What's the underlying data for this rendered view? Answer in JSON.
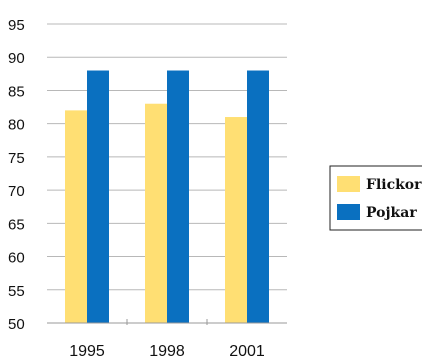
{
  "chart_data": {
    "type": "bar",
    "title": "",
    "xlabel": "",
    "ylabel": "",
    "categories": [
      "1995",
      "1998",
      "2001"
    ],
    "series": [
      {
        "name": "Flickor",
        "values": [
          82,
          83,
          81
        ],
        "color": "#ffdf73"
      },
      {
        "name": "Pojkar",
        "values": [
          88,
          88,
          88
        ],
        "color": "#0a70c0"
      }
    ],
    "ylim": [
      50,
      95
    ],
    "yticks": [
      50,
      55,
      60,
      65,
      70,
      75,
      80,
      85,
      90,
      95
    ],
    "grid": true,
    "legend_position": "right"
  }
}
